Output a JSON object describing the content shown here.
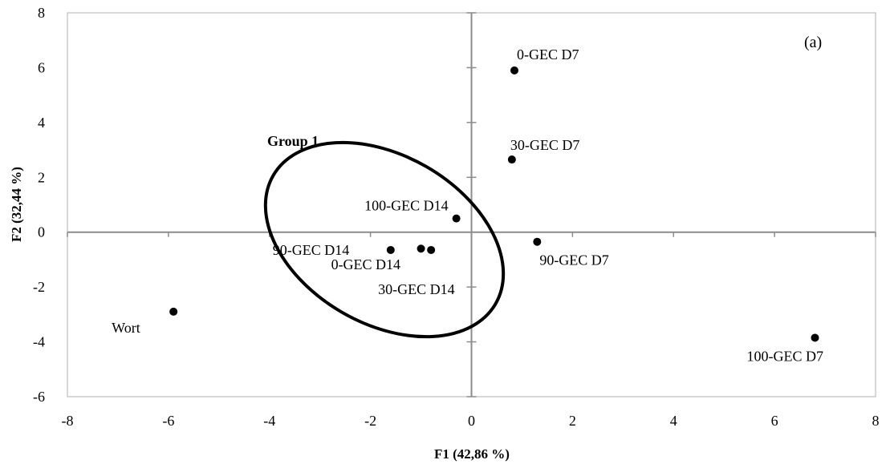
{
  "chart_data": {
    "type": "scatter",
    "panel_label": "(a)",
    "xlabel": "F1 (42,86 %)",
    "ylabel": "F2 (32,44 %)",
    "xlim": [
      -8,
      8
    ],
    "ylim": [
      -6,
      8
    ],
    "x_ticks": [
      -8,
      -6,
      -4,
      -2,
      0,
      2,
      4,
      6,
      8
    ],
    "y_ticks": [
      -6,
      -4,
      -2,
      0,
      2,
      4,
      6,
      8
    ],
    "grid": false,
    "points": [
      {
        "label": "0-GEC D7",
        "x": 0.85,
        "y": 5.9
      },
      {
        "label": "30-GEC D7",
        "x": 0.8,
        "y": 2.65
      },
      {
        "label": "100-GEC D14",
        "x": -0.3,
        "y": 0.5
      },
      {
        "label": "90-GEC D7",
        "x": 1.3,
        "y": -0.35
      },
      {
        "label": "90-GEC D14",
        "x": -1.6,
        "y": -0.65
      },
      {
        "label": "0-GEC D14",
        "x": -1.0,
        "y": -0.6
      },
      {
        "label": "30-GEC D14",
        "x": -0.8,
        "y": -0.65
      },
      {
        "label": "Wort",
        "x": -5.9,
        "y": -2.9
      },
      {
        "label": "100-GEC D7",
        "x": 6.8,
        "y": -3.85
      }
    ],
    "annotations": [
      {
        "text": "Group 1",
        "shape": "ellipse",
        "members": [
          "100-GEC D14",
          "90-GEC D14",
          "0-GEC D14",
          "30-GEC D14"
        ]
      }
    ]
  }
}
